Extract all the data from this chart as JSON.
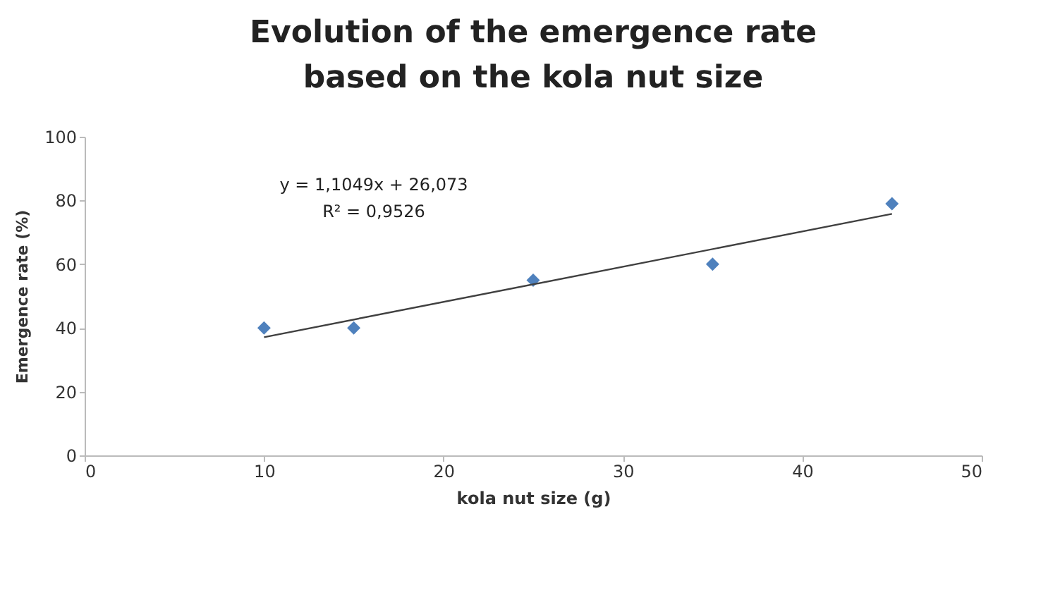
{
  "chart_data": {
    "type": "scatter",
    "title": "Evolution of the emergence rate based on the kola nut size",
    "xlabel": "kola nut size (g)",
    "ylabel": "Emergence rate (%)",
    "x": [
      10,
      15,
      25,
      35,
      45
    ],
    "series": [
      {
        "color": "#4f81bd",
        "marker": "diamond",
        "values": [
          40,
          40,
          55,
          60,
          79
        ]
      },
      {
        "type": "line",
        "color": "#404040",
        "marker": "none",
        "x": [
          10,
          45
        ],
        "values": [
          37.1,
          75.8
        ]
      }
    ],
    "annotations": [
      "y = 1,1049x + 26,073",
      "R² = 0,9526"
    ],
    "xlim": [
      0,
      50
    ],
    "xticks": [
      0,
      10,
      20,
      30,
      40,
      50
    ],
    "ylim": [
      0,
      100
    ],
    "yticks": [
      0,
      20,
      40,
      60,
      80,
      100
    ],
    "grid": false
  }
}
